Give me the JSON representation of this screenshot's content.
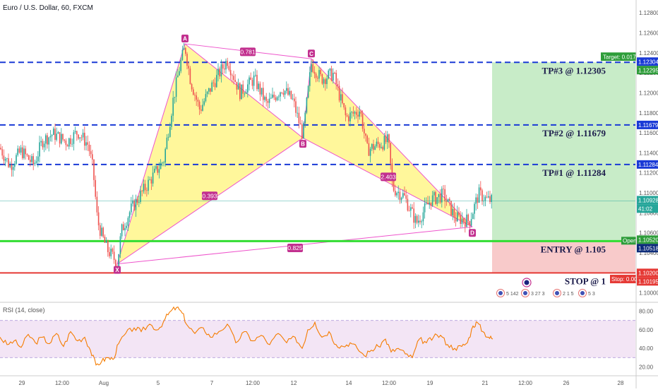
{
  "header": {
    "symbol_title": "Euro / U.S. Dollar, 60, FXCM"
  },
  "colors": {
    "up": "#26a69a",
    "down": "#ef5350",
    "line_blue": "#1a3ad6",
    "entry_green": "#33dd33",
    "stop_red": "#e53935",
    "pattern_fill": "#fff68a",
    "pattern_edge": "#ee55cc",
    "badge": "#c2308f",
    "rsi_line": "#f57c00",
    "rsi_band": "#f3e5f5",
    "target_zone": "#c8ecc8",
    "stop_zone": "#f8caca"
  },
  "chart_data": [
    {
      "type": "candlestick",
      "title": "Euro / U.S. Dollar, 60, FXCM",
      "x_tick_labels": [
        "29",
        "12:00",
        "Aug",
        "5",
        "7",
        "12:00",
        "12",
        "14",
        "12:00",
        "19",
        "21",
        "12:00",
        "26",
        "28"
      ],
      "y_tick_labels": [
        "1.12800",
        "1.12600",
        "1.12400",
        "1.12200",
        "1.12000",
        "1.11800",
        "1.11600",
        "1.11400",
        "1.11200",
        "1.11000",
        "1.10800",
        "1.10600",
        "1.10400",
        "1.10200",
        "1.10000"
      ],
      "ylim": [
        1.0992,
        1.129
      ],
      "grid": false,
      "price_path": [
        {
          "x": 0,
          "y": 1.1145
        },
        {
          "x": 14,
          "y": 1.1127
        },
        {
          "x": 30,
          "y": 1.1142
        },
        {
          "x": 48,
          "y": 1.1128
        },
        {
          "x": 60,
          "y": 1.1152
        },
        {
          "x": 75,
          "y": 1.1159
        },
        {
          "x": 95,
          "y": 1.1151
        },
        {
          "x": 110,
          "y": 1.1161
        },
        {
          "x": 125,
          "y": 1.1148
        },
        {
          "x": 132,
          "y": 1.1122
        },
        {
          "x": 138,
          "y": 1.1072
        },
        {
          "x": 145,
          "y": 1.1056
        },
        {
          "x": 152,
          "y": 1.1043
        },
        {
          "x": 160,
          "y": 1.1036
        },
        {
          "x": 166,
          "y": 1.1029
        },
        {
          "x": 172,
          "y": 1.1062
        },
        {
          "x": 185,
          "y": 1.1083
        },
        {
          "x": 200,
          "y": 1.1099
        },
        {
          "x": 215,
          "y": 1.1115
        },
        {
          "x": 232,
          "y": 1.1133
        },
        {
          "x": 245,
          "y": 1.1192
        },
        {
          "x": 255,
          "y": 1.1228
        },
        {
          "x": 262,
          "y": 1.1246
        },
        {
          "x": 270,
          "y": 1.1212
        },
        {
          "x": 283,
          "y": 1.1183
        },
        {
          "x": 300,
          "y": 1.1207
        },
        {
          "x": 322,
          "y": 1.1233
        },
        {
          "x": 340,
          "y": 1.12
        },
        {
          "x": 360,
          "y": 1.1214
        },
        {
          "x": 378,
          "y": 1.1188
        },
        {
          "x": 400,
          "y": 1.1205
        },
        {
          "x": 415,
          "y": 1.1192
        },
        {
          "x": 429,
          "y": 1.1157
        },
        {
          "x": 441,
          "y": 1.1229
        },
        {
          "x": 455,
          "y": 1.1214
        },
        {
          "x": 472,
          "y": 1.1219
        },
        {
          "x": 490,
          "y": 1.1175
        },
        {
          "x": 510,
          "y": 1.1183
        },
        {
          "x": 520,
          "y": 1.1143
        },
        {
          "x": 535,
          "y": 1.1148
        },
        {
          "x": 550,
          "y": 1.1152
        },
        {
          "x": 556,
          "y": 1.1105
        },
        {
          "x": 572,
          "y": 1.1097
        },
        {
          "x": 590,
          "y": 1.107
        },
        {
          "x": 610,
          "y": 1.1093
        },
        {
          "x": 628,
          "y": 1.1098
        },
        {
          "x": 645,
          "y": 1.1075
        },
        {
          "x": 665,
          "y": 1.1072
        },
        {
          "x": 678,
          "y": 1.1099
        },
        {
          "x": 690,
          "y": 1.1093
        },
        {
          "x": 698,
          "y": 1.1092
        }
      ],
      "current_price_label": "1.10928",
      "countdown_label": "41:02",
      "harmonic_pattern": {
        "points": [
          {
            "label": "X",
            "x": 166,
            "y": 1.1029
          },
          {
            "label": "A",
            "x": 262,
            "y": 1.1249
          },
          {
            "label": "B",
            "x": 429,
            "y": 1.1155
          },
          {
            "label": "C",
            "x": 441,
            "y": 1.1234
          },
          {
            "label": "D",
            "x": 669,
            "y": 1.1066
          }
        ],
        "ratios": [
          {
            "label": "0.781",
            "x": 351,
            "y": 1.1241
          },
          {
            "label": "0.393",
            "x": 297,
            "y": 1.1097
          },
          {
            "label": "2.403",
            "x": 550,
            "y": 1.1116
          },
          {
            "label": "0.825",
            "x": 418,
            "y": 1.1045
          }
        ]
      },
      "levels": [
        {
          "name": "TP#3",
          "label": "TP#3 @ 1.12305",
          "price": 1.12305,
          "axis_label": "1.12304",
          "axis_label_2": "1.12295",
          "style": "dashed"
        },
        {
          "name": "TP#2",
          "label": "TP#2 @ 1.11679",
          "price": 1.11679,
          "axis_label": "1.11679",
          "style": "dashed"
        },
        {
          "name": "TP#1",
          "label": "TP#1 @ 1.11284",
          "price": 1.11284,
          "axis_label": "1.11284",
          "style": "dashed"
        },
        {
          "name": "ENTRY",
          "label": "ENTRY @ 1.105",
          "price": 1.10518,
          "axis_label": "1.10518",
          "axis_label_open": "1.10520",
          "open_tag": "Open",
          "style": "solid"
        },
        {
          "name": "STOP",
          "label": "STOP @ 1",
          "price": 1.102,
          "axis_label": "1.10200",
          "axis_label_2": "1.10195",
          "style": "solid"
        }
      ],
      "position_tool": {
        "target_label": "Target: 0.017",
        "stop_label": "Stop: 0.00",
        "target_price": 1.12305,
        "entry_price": 1.10518,
        "stop_price": 1.10195,
        "x_start": 697,
        "x_end": 900
      },
      "events": [
        {
          "x": 709,
          "label": "5 142"
        },
        {
          "x": 744,
          "label": "3 27 3"
        },
        {
          "x": 789,
          "label": "2 1 5"
        },
        {
          "x": 825,
          "label": "5 3"
        }
      ]
    },
    {
      "type": "line",
      "title": "RSI (14, close)",
      "ylim": [
        12,
        88
      ],
      "y_tick_labels": [
        "80.00",
        "60.00",
        "40.00",
        "20.00"
      ],
      "band": [
        30,
        70
      ],
      "series": [
        {
          "name": "RSI (14, close)",
          "points": [
            {
              "x": 0,
              "y": 52
            },
            {
              "x": 10,
              "y": 44
            },
            {
              "x": 20,
              "y": 48
            },
            {
              "x": 30,
              "y": 41
            },
            {
              "x": 40,
              "y": 55
            },
            {
              "x": 50,
              "y": 46
            },
            {
              "x": 60,
              "y": 52
            },
            {
              "x": 70,
              "y": 45
            },
            {
              "x": 80,
              "y": 56
            },
            {
              "x": 90,
              "y": 42
            },
            {
              "x": 100,
              "y": 58
            },
            {
              "x": 110,
              "y": 48
            },
            {
              "x": 120,
              "y": 52
            },
            {
              "x": 128,
              "y": 38
            },
            {
              "x": 136,
              "y": 22
            },
            {
              "x": 144,
              "y": 26
            },
            {
              "x": 152,
              "y": 30
            },
            {
              "x": 160,
              "y": 28
            },
            {
              "x": 168,
              "y": 45
            },
            {
              "x": 178,
              "y": 56
            },
            {
              "x": 190,
              "y": 62
            },
            {
              "x": 200,
              "y": 58
            },
            {
              "x": 212,
              "y": 66
            },
            {
              "x": 224,
              "y": 60
            },
            {
              "x": 234,
              "y": 72
            },
            {
              "x": 242,
              "y": 80
            },
            {
              "x": 250,
              "y": 84
            },
            {
              "x": 258,
              "y": 78
            },
            {
              "x": 266,
              "y": 64
            },
            {
              "x": 276,
              "y": 56
            },
            {
              "x": 288,
              "y": 62
            },
            {
              "x": 298,
              "y": 52
            },
            {
              "x": 310,
              "y": 58
            },
            {
              "x": 322,
              "y": 66
            },
            {
              "x": 334,
              "y": 46
            },
            {
              "x": 346,
              "y": 58
            },
            {
              "x": 358,
              "y": 48
            },
            {
              "x": 370,
              "y": 54
            },
            {
              "x": 382,
              "y": 44
            },
            {
              "x": 394,
              "y": 56
            },
            {
              "x": 406,
              "y": 46
            },
            {
              "x": 418,
              "y": 52
            },
            {
              "x": 428,
              "y": 40
            },
            {
              "x": 436,
              "y": 60
            },
            {
              "x": 446,
              "y": 68
            },
            {
              "x": 456,
              "y": 52
            },
            {
              "x": 466,
              "y": 58
            },
            {
              "x": 476,
              "y": 44
            },
            {
              "x": 486,
              "y": 42
            },
            {
              "x": 496,
              "y": 46
            },
            {
              "x": 506,
              "y": 40
            },
            {
              "x": 516,
              "y": 32
            },
            {
              "x": 526,
              "y": 38
            },
            {
              "x": 536,
              "y": 42
            },
            {
              "x": 546,
              "y": 50
            },
            {
              "x": 554,
              "y": 36
            },
            {
              "x": 564,
              "y": 40
            },
            {
              "x": 574,
              "y": 34
            },
            {
              "x": 584,
              "y": 30
            },
            {
              "x": 594,
              "y": 50
            },
            {
              "x": 604,
              "y": 46
            },
            {
              "x": 614,
              "y": 52
            },
            {
              "x": 624,
              "y": 54
            },
            {
              "x": 634,
              "y": 44
            },
            {
              "x": 644,
              "y": 40
            },
            {
              "x": 654,
              "y": 42
            },
            {
              "x": 662,
              "y": 46
            },
            {
              "x": 670,
              "y": 64
            },
            {
              "x": 676,
              "y": 68
            },
            {
              "x": 684,
              "y": 58
            },
            {
              "x": 692,
              "y": 52
            },
            {
              "x": 698,
              "y": 50
            }
          ]
        }
      ]
    }
  ]
}
